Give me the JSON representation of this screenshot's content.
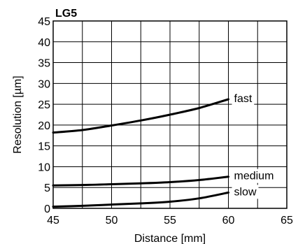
{
  "chart_data": {
    "type": "line",
    "title": "LG5",
    "xlabel": "Distance [mm]",
    "ylabel": "Resolution [µm]",
    "xlim": [
      45,
      65
    ],
    "ylim": [
      0,
      45
    ],
    "x_ticks": [
      45,
      50,
      55,
      60,
      65
    ],
    "y_ticks": [
      0,
      5,
      10,
      15,
      20,
      25,
      30,
      35,
      40,
      45
    ],
    "x_tick_labels": [
      "45",
      "50",
      "55",
      "60",
      "65"
    ],
    "y_tick_labels": [
      "0",
      "5",
      "10",
      "15",
      "20",
      "25",
      "30",
      "35",
      "40",
      "45"
    ],
    "x_minor_step": 2.5,
    "grid": true,
    "legend": "inline labels at right end of curves",
    "series": [
      {
        "name": "fast",
        "x": [
          45,
          47.5,
          50,
          52.5,
          55,
          57.5,
          60
        ],
        "values": [
          18.2,
          18.8,
          19.9,
          21.1,
          22.5,
          24.1,
          26.2
        ]
      },
      {
        "name": "medium",
        "x": [
          45,
          47.5,
          50,
          52.5,
          55,
          57.5,
          60
        ],
        "values": [
          5.5,
          5.6,
          5.8,
          6.0,
          6.3,
          6.8,
          7.6
        ]
      },
      {
        "name": "slow",
        "x": [
          45,
          47.5,
          50,
          52.5,
          55,
          57.5,
          60
        ],
        "values": [
          0.4,
          0.6,
          0.9,
          1.2,
          1.6,
          2.4,
          3.8
        ]
      }
    ]
  }
}
